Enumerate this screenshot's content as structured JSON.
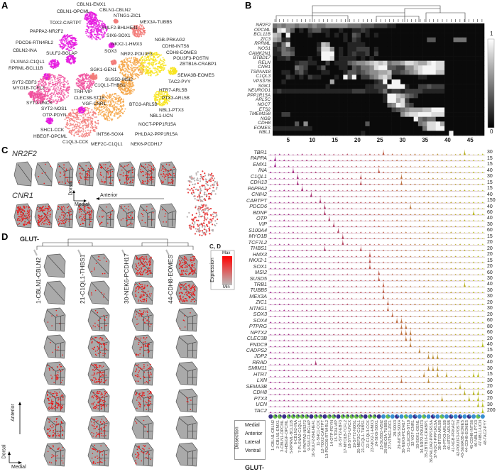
{
  "panels": {
    "a": "A",
    "b": "B",
    "c": "C",
    "d": "D"
  },
  "umap_labels": [
    "CBLN1-EMX1",
    "CBLN1-OPCML",
    "CBLN1-CBLN2",
    "NTNG1-ZIC1",
    "MEX3A-TUBB5",
    "TOX2-CARTPT",
    "SULF2-BHLHE41",
    "PAPPA2-NR2F2",
    "SIX6-SOX1",
    "NGB-PRKAG2",
    "PDCD6-RTN4RL2",
    "NKX2-1-HMX3",
    "CDH8-INTS6",
    "CBLN2-INA",
    "SULF2-BGLAP",
    "SOX3",
    "NRP2-POU3F3",
    "CDH8-EOMES",
    "POU3F3-POSTN",
    "PLXNA2-C1QL1",
    "ZBTB16-CRABP1",
    "RPRML-BCL11B",
    "SGK1-GEN1",
    "SEMA3B-EOMES",
    "SUS5D-MSI2",
    "SYT2-EBF3",
    "C1QL1-THBS1",
    "TAC2-PYY",
    "MYO1B-TCFL2",
    "TRH-VIP",
    "HTR7-ARL5B",
    "CLEC3B-ST18",
    "PTX3-ARL5B",
    "SYT2-UNCX",
    "VGF-CNR1",
    "BTG3-ARL5B",
    "SYT2-NOS1",
    "NBL1-PTX3",
    "OTP-PDYN",
    "NBL1-UCN",
    "NOCT-PPP1R15A",
    "SHC1-CCK",
    "INTS6-SOX4",
    "PHLDA2-PPP1R15A",
    "HBEGF-OPCML",
    "C1QL3-CCK",
    "MEF2C-C1QL1",
    "NEK6-PCDH17"
  ],
  "umap_colors": [
    "#e619e0",
    "#f0509e",
    "#f27a78",
    "#f5a443",
    "#f7e31c"
  ],
  "heatmap": {
    "genes": [
      "NR2F2",
      "OPCML",
      "BCL11B",
      "ZIC3",
      "RPRML",
      "NOS1",
      "CAMK2N1",
      "BTBD17",
      "RELN",
      "CNR1",
      "TSPAN18",
      "C1QL3",
      "VPS37B",
      "SGK1",
      "NEUROD1",
      "PPP1R15A",
      "ARL5C",
      "NOCT",
      "ETS2",
      "TMEM158",
      "NGB",
      "CDH8",
      "EOMES",
      "NBL1"
    ],
    "x_ticks": [
      "5",
      "10",
      "15",
      "20",
      "25",
      "30",
      "35",
      "40",
      "45"
    ],
    "colorbar": {
      "max": "1",
      "min": "0"
    },
    "values": [
      "454554554544555554443332221100000000000000000000",
      "289530102331100100112100000000000000000000000000",
      "760900001000101010320101000000000000000000000000",
      "651200000000000010210000000000000003300004440000",
      "214800000017600001111000000000000000000000000000",
      "124320000028850101122201000000000000000000000000",
      "114430000019990101211202000000000000000000000000",
      "011200001009980111101010000000000000000000000000",
      "000001221100201113455678784556887668988000000000",
      "000004320013000110324458993322557899988000000000",
      "001102310001100013323455667223456899977000000000",
      "000210102110001093902245786000000110000000000000",
      "001000000000060000000001290990000000000000000000",
      "000000000000100000000112229999100223222000000000",
      "121111111111111111222111241221222211111000000000",
      "000000000000000000000000019976432000000000000000",
      "000000000000000000000000019968200000000000000000",
      "000000000000000000000000004598320000000000000000",
      "000000000000000000000000000234566677999000000000",
      "002200000000000000000000000005788999888000000000",
      "000000000000000000000000000000009434400000000000",
      "000003050000000000000300000000000458896000000000",
      "111111111000000000000000000000000048899000000000",
      "000000000000000000001000000000000000000090000000"
    ]
  },
  "section_c": {
    "genes": [
      "NR2F2",
      "CNR1"
    ],
    "levels": [
      [
        0,
        0.05,
        0.2,
        0.3,
        0.35,
        0.35,
        0.45,
        0.45
      ],
      [
        0.95,
        0.85,
        0.45,
        0.5,
        0.15,
        0.2,
        0.1,
        0.05
      ]
    ],
    "axes": {
      "dorsal": "Dorsal",
      "medial": "Medial",
      "anterior": "Anterior"
    }
  },
  "section_d": {
    "title": "GLUT-",
    "clusters": [
      "1-CBLN1-CBLN2",
      "21-C1QL1-THBS1",
      "30-NEK6-PCDH17",
      "44-CDH8-EOMES"
    ],
    "levels": [
      [
        0,
        0,
        0.05,
        0.05,
        0.3,
        0.7,
        0.5,
        0.2
      ],
      [
        0.1,
        0.05,
        0.15,
        0.45,
        0.6,
        0.7,
        0.45,
        0.3
      ],
      [
        0.9,
        0.6,
        0.3,
        0.35,
        0.4,
        0.5,
        0.05,
        0.3
      ],
      [
        0.95,
        0.9,
        0.05,
        0,
        0,
        0.05,
        0,
        0
      ]
    ],
    "axes": {
      "anterior": "Anterior",
      "dorsal": "Dorsal",
      "medial": "Medial"
    },
    "legend": {
      "title": "C, D",
      "label": "Expression",
      "max": "Max",
      "min": "Min"
    }
  },
  "violin": {
    "genes": [
      "TBR1",
      "PAPPA",
      "EMX1",
      "INA",
      "C1QL1",
      "CDH13",
      "PAPPA2",
      "CNIH2",
      "CARTPT",
      "PDCD6",
      "BDNF",
      "OTP",
      "VIP",
      "S100A4",
      "MYO1B",
      "TCF7L2",
      "THBS1",
      "HMX3",
      "NKX2-1",
      "SOX1",
      "MSI2",
      "SUSD5",
      "TRB1",
      "TUBB5",
      "MEX3A",
      "ZIC1",
      "NTNG1",
      "SOX3",
      "SOX4",
      "PTPRG",
      "NPTX2",
      "CLEC3B",
      "FNDC9",
      "CADPS2",
      "JDP2",
      "RRAD",
      "SMIM11",
      "HTR7",
      "LXN",
      "SEMA3B",
      "CDH8",
      "PTX3",
      "UCN",
      "TAC2"
    ],
    "max_values": [
      "30",
      "15",
      "15",
      "40",
      "30",
      "15",
      "15",
      "40",
      "150",
      "40",
      "60",
      "40",
      "30",
      "60",
      "15",
      "20",
      "20",
      "20",
      "15",
      "20",
      "60",
      "30",
      "40",
      "30",
      "30",
      "20",
      "30",
      "20",
      "60",
      "80",
      "60",
      "20",
      "40",
      "15",
      "80",
      "40",
      "30",
      "15",
      "30",
      "20",
      "60",
      "20",
      "30",
      "200"
    ],
    "peak_clusters": [
      [
        26,
        44
      ],
      [
        2
      ],
      [
        2
      ],
      [
        6,
        25
      ],
      [
        7,
        21,
        30
      ],
      [
        7,
        21,
        30
      ],
      [
        8
      ],
      [
        10
      ],
      [
        12
      ],
      [
        13,
        32
      ],
      [
        13,
        46
      ],
      [
        14
      ],
      [
        15
      ],
      [
        16
      ],
      [
        17
      ],
      [
        17
      ],
      [
        13,
        21
      ],
      [
        23
      ],
      [
        23
      ],
      [
        23
      ],
      [
        25
      ],
      [
        25
      ],
      [
        26,
        44
      ],
      [
        26
      ],
      [
        26
      ],
      [
        27
      ],
      [
        27
      ],
      [
        28
      ],
      [
        29,
        30
      ],
      [
        30,
        31
      ],
      [
        30,
        31,
        32
      ],
      [
        31,
        32
      ],
      [
        32,
        48
      ],
      [
        34
      ],
      [
        36,
        37,
        38
      ],
      [
        11
      ],
      [
        36,
        37,
        38
      ],
      [
        35,
        38,
        40,
        46,
        47
      ],
      [
        30,
        36
      ],
      [
        43
      ],
      [
        44,
        46,
        47
      ],
      [
        39,
        45,
        47
      ],
      [
        47,
        48
      ],
      [
        48
      ]
    ],
    "cluster_labels": [
      "1-CBLN1-CBLN2",
      "2-CBLN1-EMX1",
      "3-CBLN1-OPCML",
      "4-HBEGF-OPCML",
      "5-RPRML-BCL11B",
      "6-CBLN2-INA",
      "7-PLXNA2-C1QL1",
      "8-PAPPA2-NR2F2",
      "9-SULF2-BGLAP",
      "10-SULF2-BHLHE41",
      "11-SHC1-CCK",
      "12-TOX2-CARTPT",
      "13-PDCD6-RTN4RL2",
      "14-OTP-PDYN",
      "15-TRH-VIP",
      "16-SYT2-EBF3",
      "17-MYO1B-TCFL2",
      "18-SYT2-UNCX",
      "19-SYT2-NOS1",
      "20-MEF2C-C1QL1",
      "21-C1QL1-THBS1",
      "22-C1QL3-CCK",
      "23-NKX2-1-HMX3",
      "24-SIX6-SOX1",
      "25-SUS5D-MSI2",
      "26-MEX3A-TUBB5",
      "27-NTNG1-ZIC1",
      "28-SOX3",
      "29-INTS6-SOX4",
      "30-NEK6-PCDH17",
      "31-CLEC3B-ST18",
      "32-VGF-CNR1",
      "33-SGK1-GEN1",
      "34-NRP2-POU3F3",
      "35-ZBTB16-CRABP1",
      "36-PHLDA2-PPP1R15A",
      "37-NOCT-PPP1R15A",
      "38-BTG3-ARL5B",
      "39-PTX3-ARL5B",
      "40-HTR7-ARL5B",
      "41-NGB-PRKAG2",
      "42-POU3F3-POSTN",
      "43-SEMA3B-EOMES",
      "44-CDH8-EOMES",
      "45-CDH8-INTS6",
      "46-NBL1-PTX3",
      "47-NBL1-UCN",
      "48-TAC2-PYY"
    ],
    "gradient": {
      "start": "#9c1a8c",
      "mid": "#c0584a",
      "end": "#b8c21c"
    },
    "footer": "GLUT-"
  },
  "dissection": {
    "title": "Dissection",
    "items": [
      {
        "label": "Medial",
        "color": "#3a2f8a"
      },
      {
        "label": "Anterior",
        "color": "#3a8fd0"
      },
      {
        "label": "Lateral",
        "color": "#6cc04a"
      },
      {
        "label": "Ventral",
        "color": "#f0e51c"
      }
    ]
  }
}
